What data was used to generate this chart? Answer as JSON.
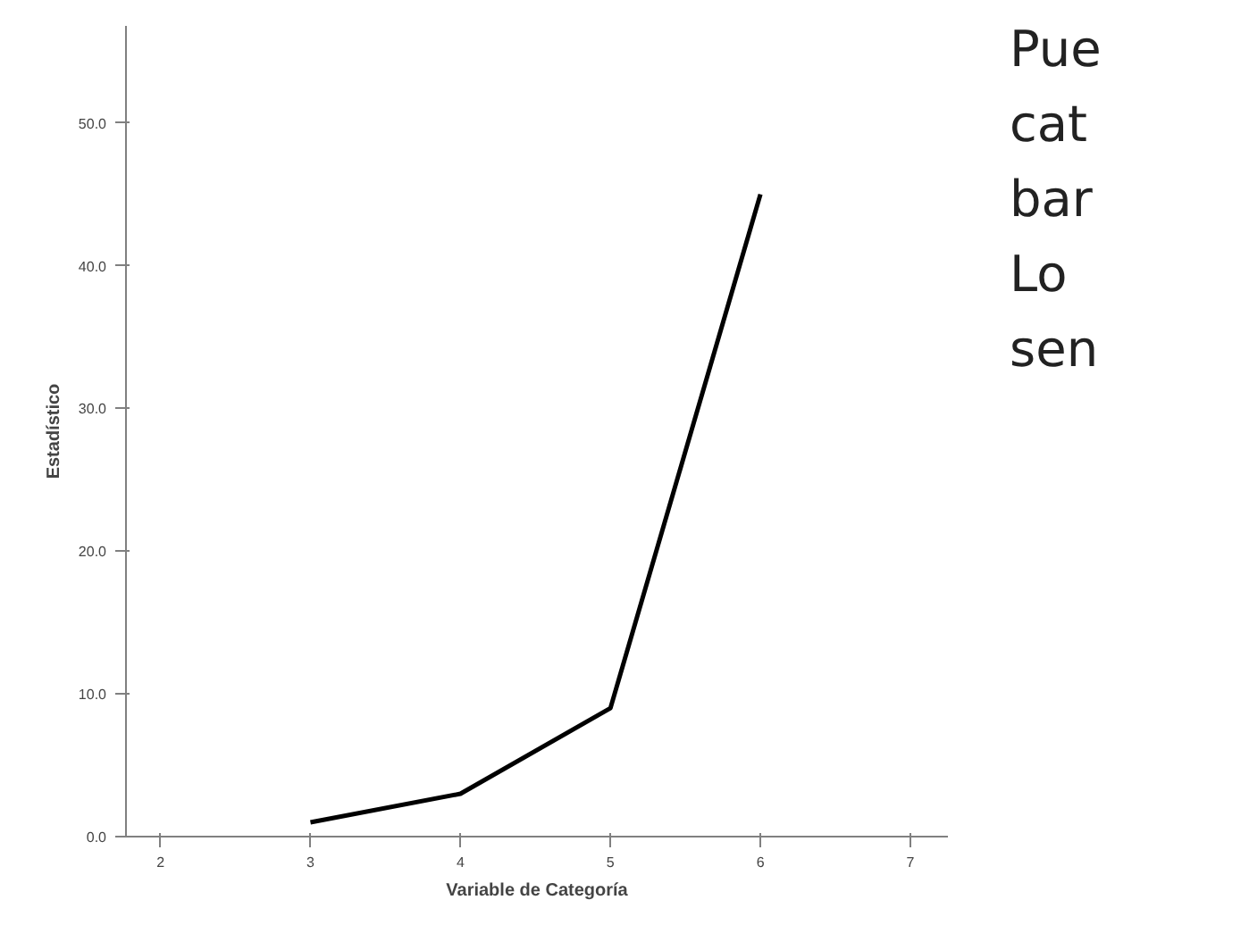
{
  "chart_data": {
    "type": "line",
    "xlabel": "Variable de Categoría",
    "ylabel": "Estadístico",
    "x": [
      3,
      4,
      5,
      6
    ],
    "series": [
      {
        "color": "#000000",
        "values": [
          1,
          3,
          9,
          45
        ]
      }
    ],
    "xlim": [
      1.77,
      7.25
    ],
    "xticks": [
      2,
      3,
      4,
      5,
      6,
      7
    ],
    "ylim": [
      0,
      56.8
    ],
    "yticks": [
      {
        "value": 0,
        "label": "0.0"
      },
      {
        "value": 10,
        "label": "10.0"
      },
      {
        "value": 20,
        "label": "20.0"
      },
      {
        "value": 30,
        "label": "30.0"
      },
      {
        "value": 40,
        "label": "40.0"
      },
      {
        "value": 50,
        "label": "50.0"
      }
    ],
    "grid": false,
    "marker": "none",
    "line_style": "solid",
    "annotations": [
      "Pue",
      "cat",
      "bar",
      "Lo",
      "sen"
    ]
  }
}
